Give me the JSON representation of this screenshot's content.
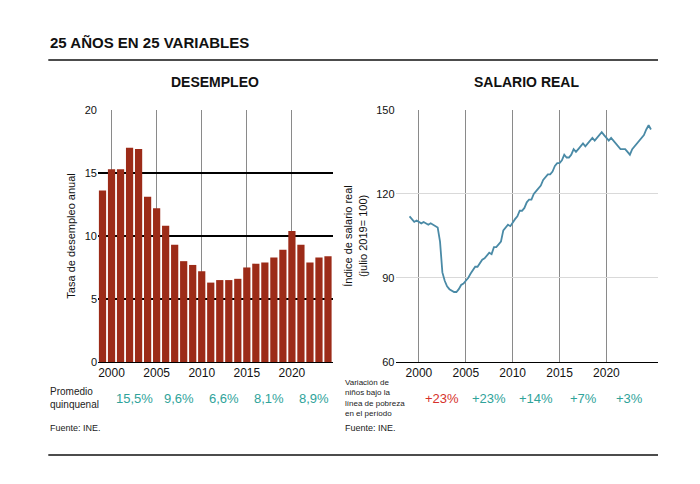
{
  "header": "25 AÑOS EN 25 VARIABLES",
  "chart_data": [
    {
      "type": "bar",
      "title": "DESEMPLEO",
      "y_label": [
        "Tasa de desempleo anual"
      ],
      "x": [
        1999,
        2000,
        2001,
        2002,
        2003,
        2004,
        2005,
        2006,
        2007,
        2008,
        2009,
        2010,
        2011,
        2012,
        2013,
        2014,
        2015,
        2016,
        2017,
        2018,
        2019,
        2020,
        2021,
        2022,
        2023,
        2024
      ],
      "values": [
        13.6,
        15.3,
        15.3,
        17.0,
        16.9,
        13.1,
        12.2,
        10.8,
        9.3,
        8.0,
        7.7,
        7.2,
        6.3,
        6.5,
        6.5,
        6.6,
        7.5,
        7.8,
        7.9,
        8.3,
        8.9,
        10.4,
        9.3,
        7.9,
        8.3,
        8.4
      ],
      "color": "#9c2b18",
      "xlim": [
        1998.5,
        2024.5
      ],
      "xticks": [
        2000,
        2005,
        2010,
        2015,
        2020
      ],
      "ylim": [
        0,
        20
      ],
      "yticks": [
        0,
        5,
        10,
        15,
        20
      ],
      "grid": true,
      "footer": {
        "label": [
          "Promedio",
          "quinquenal"
        ],
        "texts": [
          "15,5%",
          "9,6%",
          "6,6%",
          "8,1%",
          "8,9%"
        ],
        "colors": [
          "#2fa39a",
          "#2fa39a",
          "#2fa39a",
          "#2fa39a",
          "#2fa39a"
        ]
      },
      "source": "Fuente: INE."
    },
    {
      "type": "line",
      "title": "SALARIO REAL",
      "y_label": [
        "Índice de salario real",
        "(julio 2019= 100)"
      ],
      "x": [
        1999,
        1999.25,
        1999.5,
        1999.75,
        2000,
        2000.25,
        2000.5,
        2000.75,
        2001,
        2001.25,
        2001.5,
        2001.75,
        2002,
        2002.25,
        2002.5,
        2002.75,
        2003,
        2003.25,
        2003.5,
        2003.75,
        2004,
        2004.25,
        2004.5,
        2004.75,
        2005,
        2005.25,
        2005.5,
        2005.75,
        2006,
        2006.25,
        2006.5,
        2006.75,
        2007,
        2007.25,
        2007.5,
        2007.75,
        2008,
        2008.25,
        2008.5,
        2008.75,
        2009,
        2009.25,
        2009.5,
        2009.75,
        2010,
        2010.25,
        2010.5,
        2010.75,
        2011,
        2011.25,
        2011.5,
        2011.75,
        2012,
        2012.25,
        2012.5,
        2012.75,
        2013,
        2013.25,
        2013.5,
        2013.75,
        2014,
        2014.25,
        2014.5,
        2014.75,
        2015,
        2015.25,
        2015.5,
        2015.75,
        2016,
        2016.25,
        2016.5,
        2016.75,
        2017,
        2017.25,
        2017.5,
        2017.75,
        2018,
        2018.25,
        2018.5,
        2018.75,
        2019,
        2019.25,
        2019.5,
        2019.75,
        2020,
        2020.25,
        2020.5,
        2020.75,
        2021,
        2021.25,
        2021.5,
        2021.75,
        2022,
        2022.25,
        2022.5,
        2022.75,
        2023,
        2023.25,
        2023.5,
        2023.75,
        2024,
        2024.25,
        2024.5,
        2024.75
      ],
      "values": [
        112,
        111,
        110,
        110.5,
        110,
        109.5,
        110,
        109.5,
        109,
        109.5,
        109,
        108.5,
        108,
        103,
        92,
        89,
        87,
        86,
        85.5,
        85,
        85,
        86,
        87.5,
        88,
        89,
        90,
        91.5,
        93,
        94,
        94,
        95.5,
        96.5,
        97,
        98,
        99,
        98.5,
        101,
        101,
        102,
        103,
        107,
        108,
        109,
        108.5,
        110,
        111,
        112,
        114,
        114,
        115,
        117,
        118,
        118,
        120,
        121,
        122,
        123,
        125,
        126,
        127,
        127,
        128,
        130,
        131,
        131,
        132,
        134,
        133,
        133,
        134,
        136,
        135,
        136,
        137,
        138,
        137,
        138,
        139,
        140,
        139,
        140,
        141,
        142,
        141,
        140,
        139,
        140,
        139,
        138,
        137,
        136,
        136,
        136,
        135,
        134,
        136,
        137,
        138,
        139,
        140,
        141,
        143,
        144.5,
        143
      ],
      "color": "#4a8aa6",
      "xlim": [
        1997.5,
        2025.5
      ],
      "xticks": [
        2000,
        2005,
        2010,
        2015,
        2020
      ],
      "ylim": [
        60,
        150
      ],
      "yticks": [
        60,
        90,
        120,
        150
      ],
      "grid": true,
      "footer": {
        "label": [
          "Variación de",
          "niños bajo la",
          "línea de pobreza",
          "en el período"
        ],
        "texts": [
          "+23%",
          "+23%",
          "+14%",
          "+7%",
          "+3%"
        ],
        "colors": [
          "#d6312b",
          "#2fa39a",
          "#2fa39a",
          "#2fa39a",
          "#2fa39a"
        ]
      },
      "source": "Fuente: INE."
    }
  ]
}
